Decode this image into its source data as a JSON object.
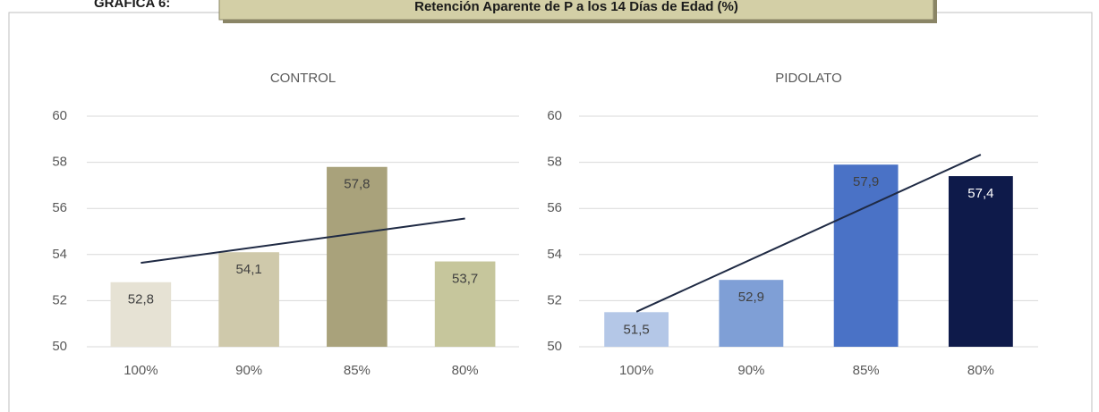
{
  "header": {
    "label": "GRAFICA 6:",
    "title": "Retención Aparente de P a los 14 Días de Edad (%)"
  },
  "chart_data": [
    {
      "type": "bar",
      "title": "CONTROL",
      "categories": [
        "100%",
        "90%",
        "85%",
        "80%"
      ],
      "values": [
        52.8,
        54.1,
        57.8,
        53.7
      ],
      "value_labels": [
        "52,8",
        "54,1",
        "57,8",
        "53,7"
      ],
      "colors": [
        "#e6e2d4",
        "#cfc9ab",
        "#a9a27b",
        "#c6c69c"
      ],
      "ylim": [
        50,
        60
      ],
      "yticks": [
        50,
        52,
        54,
        56,
        58,
        60
      ],
      "grid": true,
      "trendline": "linear",
      "trendline_color": "#1f2a44"
    },
    {
      "type": "bar",
      "title": "PIDOLATO",
      "categories": [
        "100%",
        "90%",
        "85%",
        "80%"
      ],
      "values": [
        51.5,
        52.9,
        57.9,
        57.4
      ],
      "value_labels": [
        "51,5",
        "52,9",
        "57,9",
        "57,4"
      ],
      "colors": [
        "#b4c7e7",
        "#7f9fd6",
        "#4a72c6",
        "#0e1a4a"
      ],
      "ylim": [
        50,
        60
      ],
      "yticks": [
        50,
        52,
        54,
        56,
        58,
        60
      ],
      "grid": true,
      "trendline": "linear",
      "trendline_color": "#1f2a44"
    }
  ]
}
